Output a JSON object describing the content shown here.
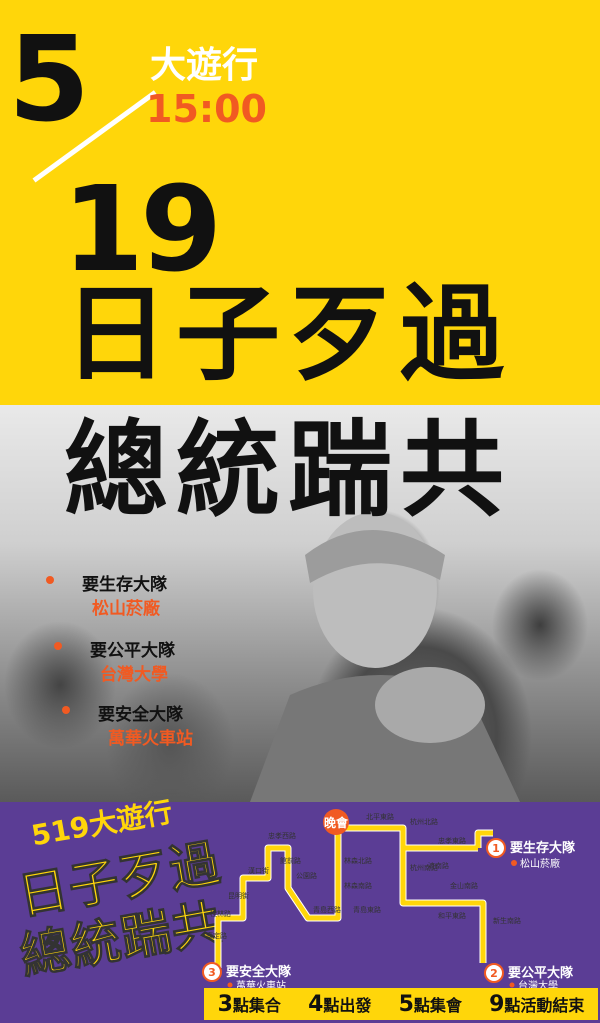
{
  "header": {
    "month": "5",
    "day": "19",
    "march_label": "大遊行",
    "time": "15:00",
    "slogan_line1": "日子歹過",
    "slogan_line2": "總統踹共"
  },
  "teams": [
    {
      "name": "要生存大隊",
      "location": "松山菸廠"
    },
    {
      "name": "要公平大隊",
      "location": "台灣大學"
    },
    {
      "name": "要安全大隊",
      "location": "萬華火車站"
    }
  ],
  "bottom": {
    "march_label": "519大遊行",
    "slogan_line1": "日子歹過",
    "slogan_line2": "總統踹共"
  },
  "map": {
    "evening_rally": "晚會",
    "streets": [
      "北平東路",
      "杭州北路",
      "杭州南路",
      "忠孝東路",
      "濟南路",
      "金山南路",
      "和平東路",
      "新生南路",
      "林森北路",
      "林森南路",
      "青島西路",
      "青島東路",
      "公園路",
      "忠孝西路",
      "館前路",
      "漢口街",
      "昆明街",
      "桂林路",
      "康定路"
    ],
    "routes": [
      {
        "number": "1",
        "name": "要生存大隊",
        "location": "松山菸廠"
      },
      {
        "number": "2",
        "name": "要公平大隊",
        "location": "台灣大學"
      },
      {
        "number": "3",
        "name": "要安全大隊",
        "location": "萬華火車站"
      }
    ]
  },
  "schedule": [
    {
      "num": "3",
      "label": "點集合"
    },
    {
      "num": "4",
      "label": "點出發"
    },
    {
      "num": "5",
      "label": "點集會"
    },
    {
      "num": "9",
      "label": "點活動結束"
    }
  ],
  "colors": {
    "yellow": "#ffd60a",
    "orange": "#f15a22",
    "purple": "#5b3d95"
  }
}
